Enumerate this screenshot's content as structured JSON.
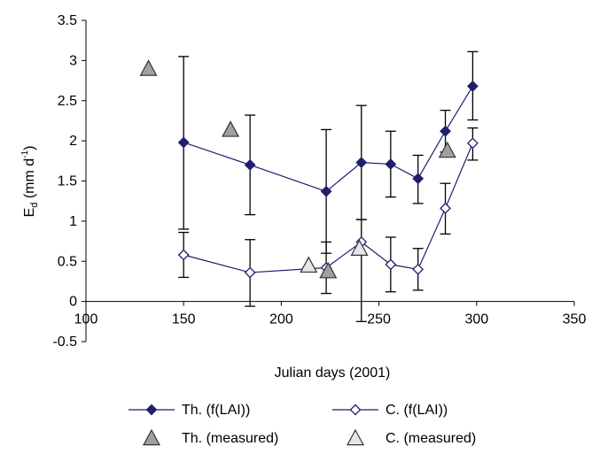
{
  "chart_data": {
    "type": "line",
    "title": "",
    "xlabel": "Julian days (2001)",
    "ylabel_main": "E",
    "ylabel_sub": "d",
    "ylabel_unit": " (mm d",
    "ylabel_sup": "-1",
    "ylabel_close": ")",
    "xlim": [
      100,
      350
    ],
    "ylim": [
      -0.5,
      3.5
    ],
    "xticks": [
      {
        "v": 100,
        "label": "100"
      },
      {
        "v": 150,
        "label": "150"
      },
      {
        "v": 200,
        "label": "200"
      },
      {
        "v": 250,
        "label": "250"
      },
      {
        "v": 300,
        "label": "300"
      },
      {
        "v": 350,
        "label": "350"
      }
    ],
    "yticks": [
      {
        "v": -0.5,
        "label": "-0.5"
      },
      {
        "v": 0,
        "label": "0"
      },
      {
        "v": 0.5,
        "label": "0.5"
      },
      {
        "v": 1,
        "label": "1"
      },
      {
        "v": 1.5,
        "label": "1.5"
      },
      {
        "v": 2,
        "label": "2"
      },
      {
        "v": 2.5,
        "label": "2.5"
      },
      {
        "v": 3,
        "label": "3"
      },
      {
        "v": 3.5,
        "label": "3.5"
      }
    ],
    "grid": false,
    "legend_position": "bottom",
    "series": [
      {
        "name": "Th. (f(LAI))",
        "marker": "diamond-filled",
        "line": true,
        "color": "#1f1f6e",
        "points": [
          {
            "x": 150,
            "y": 1.98,
            "lo": 0.9,
            "hi": 3.05
          },
          {
            "x": 184,
            "y": 1.7,
            "lo": 1.08,
            "hi": 2.32
          },
          {
            "x": 223,
            "y": 1.37,
            "lo": 0.6,
            "hi": 2.14
          },
          {
            "x": 241,
            "y": 1.73,
            "lo": 1.02,
            "hi": 2.44
          },
          {
            "x": 256,
            "y": 1.71,
            "lo": 1.3,
            "hi": 2.12
          },
          {
            "x": 270,
            "y": 1.53,
            "lo": 1.22,
            "hi": 1.82
          },
          {
            "x": 284,
            "y": 2.12,
            "lo": 1.86,
            "hi": 2.38
          },
          {
            "x": 298,
            "y": 2.68,
            "lo": 2.26,
            "hi": 3.11
          }
        ]
      },
      {
        "name": "C. (f(LAI))",
        "marker": "diamond-open",
        "line": true,
        "color": "#1f1f6e",
        "points": [
          {
            "x": 150,
            "y": 0.58,
            "lo": 0.3,
            "hi": 0.86
          },
          {
            "x": 184,
            "y": 0.36,
            "lo": -0.06,
            "hi": 0.77
          },
          {
            "x": 223,
            "y": 0.42,
            "lo": 0.1,
            "hi": 0.74
          },
          {
            "x": 241,
            "y": 0.74,
            "lo": -0.25,
            "hi": 1.02
          },
          {
            "x": 256,
            "y": 0.46,
            "lo": 0.12,
            "hi": 0.8
          },
          {
            "x": 270,
            "y": 0.4,
            "lo": 0.14,
            "hi": 0.66
          },
          {
            "x": 284,
            "y": 1.16,
            "lo": 0.84,
            "hi": 1.47
          },
          {
            "x": 298,
            "y": 1.97,
            "lo": 1.76,
            "hi": 2.16
          }
        ]
      },
      {
        "name": "Th. (measured)",
        "marker": "triangle-gray",
        "line": false,
        "color": "#a0a0a0",
        "points": [
          {
            "x": 132,
            "y": 2.9
          },
          {
            "x": 174,
            "y": 2.14
          },
          {
            "x": 224,
            "y": 0.38
          },
          {
            "x": 285,
            "y": 1.88
          }
        ]
      },
      {
        "name": "C. (measured)",
        "marker": "triangle-light",
        "line": false,
        "color": "#e6e6e6",
        "points": [
          {
            "x": 214,
            "y": 0.45
          },
          {
            "x": 240,
            "y": 0.66
          }
        ]
      }
    ],
    "legend": [
      {
        "label": "Th. (f(LAI))",
        "marker": "diamond-filled",
        "line": true
      },
      {
        "label": "C. (f(LAI))",
        "marker": "diamond-open",
        "line": true
      },
      {
        "label": "Th. (measured)",
        "marker": "triangle-gray",
        "line": false
      },
      {
        "label": "C. (measured)",
        "marker": "triangle-light",
        "line": false
      }
    ]
  }
}
